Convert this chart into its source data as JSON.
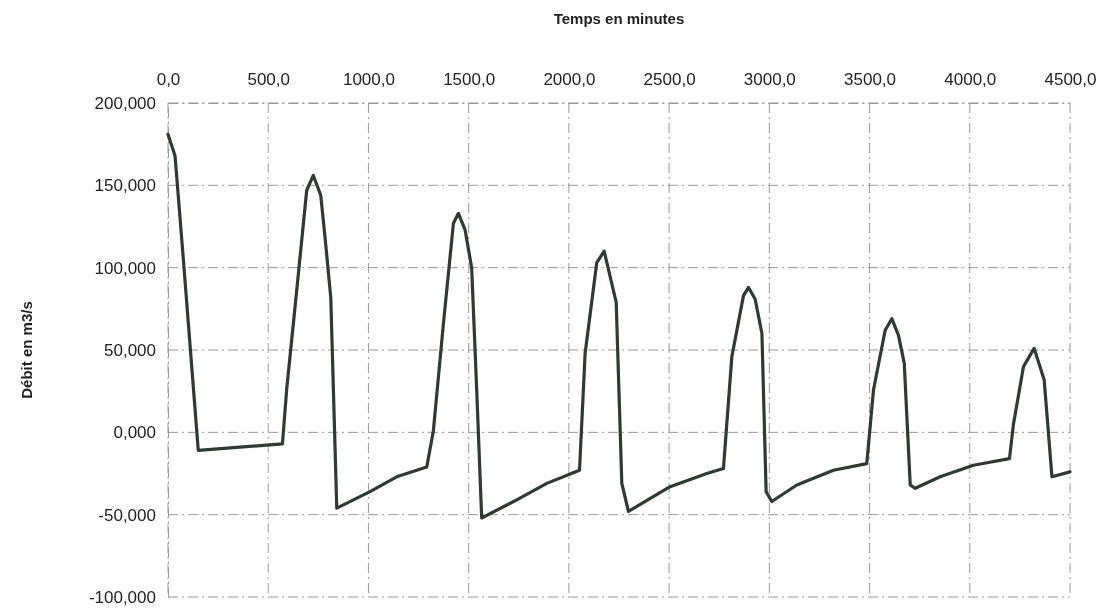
{
  "chart_data": {
    "type": "line",
    "xlabel": "Temps en minutes",
    "ylabel": "Débit en m3/s",
    "xlim": [
      0,
      4500
    ],
    "ylim": [
      -100,
      200
    ],
    "xticks": [
      {
        "value": 0,
        "label": "0,0"
      },
      {
        "value": 500,
        "label": "500,0"
      },
      {
        "value": 1000,
        "label": "1000,0"
      },
      {
        "value": 1500,
        "label": "1500,0"
      },
      {
        "value": 2000,
        "label": "2000,0"
      },
      {
        "value": 2500,
        "label": "2500,0"
      },
      {
        "value": 3000,
        "label": "3000,0"
      },
      {
        "value": 3500,
        "label": "3500,0"
      },
      {
        "value": 4000,
        "label": "4000,0"
      },
      {
        "value": 4500,
        "label": "4500,0"
      }
    ],
    "yticks": [
      {
        "value": -100,
        "label": "-100,000"
      },
      {
        "value": -50,
        "label": "-50,000"
      },
      {
        "value": 0,
        "label": "0,000"
      },
      {
        "value": 50,
        "label": "50,000"
      },
      {
        "value": 100,
        "label": "100,000"
      },
      {
        "value": 150,
        "label": "150,000"
      },
      {
        "value": 200,
        "label": "200,000"
      }
    ],
    "grid": true,
    "line_style": "solid",
    "marker": "none",
    "series": [
      {
        "color": "#2f3a33",
        "x": [
          0,
          35,
          76,
          151,
          571,
          592,
          642,
          692,
          725,
          762,
          783,
          812,
          842,
          1008,
          1141,
          1291,
          1324,
          1374,
          1424,
          1449,
          1482,
          1515,
          1540,
          1565,
          1740,
          1890,
          2053,
          2081,
          2139,
          2176,
          2236,
          2264,
          2297,
          2505,
          2688,
          2771,
          2813,
          2871,
          2896,
          2929,
          2963,
          2984,
          3012,
          3137,
          3320,
          3486,
          3520,
          3578,
          3611,
          3644,
          3673,
          3703,
          3728,
          3852,
          4018,
          4198,
          4218,
          4268,
          4321,
          4371,
          4410,
          4500
        ],
        "values": [
          181,
          168,
          106,
          -11,
          -7,
          26,
          86,
          147,
          156,
          144,
          119,
          82,
          -46,
          -36,
          -27,
          -21,
          1,
          66,
          127,
          133,
          123,
          100,
          26,
          -52,
          -41,
          -31,
          -23,
          48,
          103,
          110,
          79,
          -31,
          -48,
          -33,
          -25,
          -22,
          46,
          83,
          88,
          81,
          60,
          -36,
          -42,
          -32,
          -23,
          -19,
          26,
          62,
          69,
          59,
          42,
          -32,
          -34,
          -27,
          -20,
          -16,
          5,
          40,
          51,
          32,
          -27,
          -24
        ]
      }
    ]
  }
}
